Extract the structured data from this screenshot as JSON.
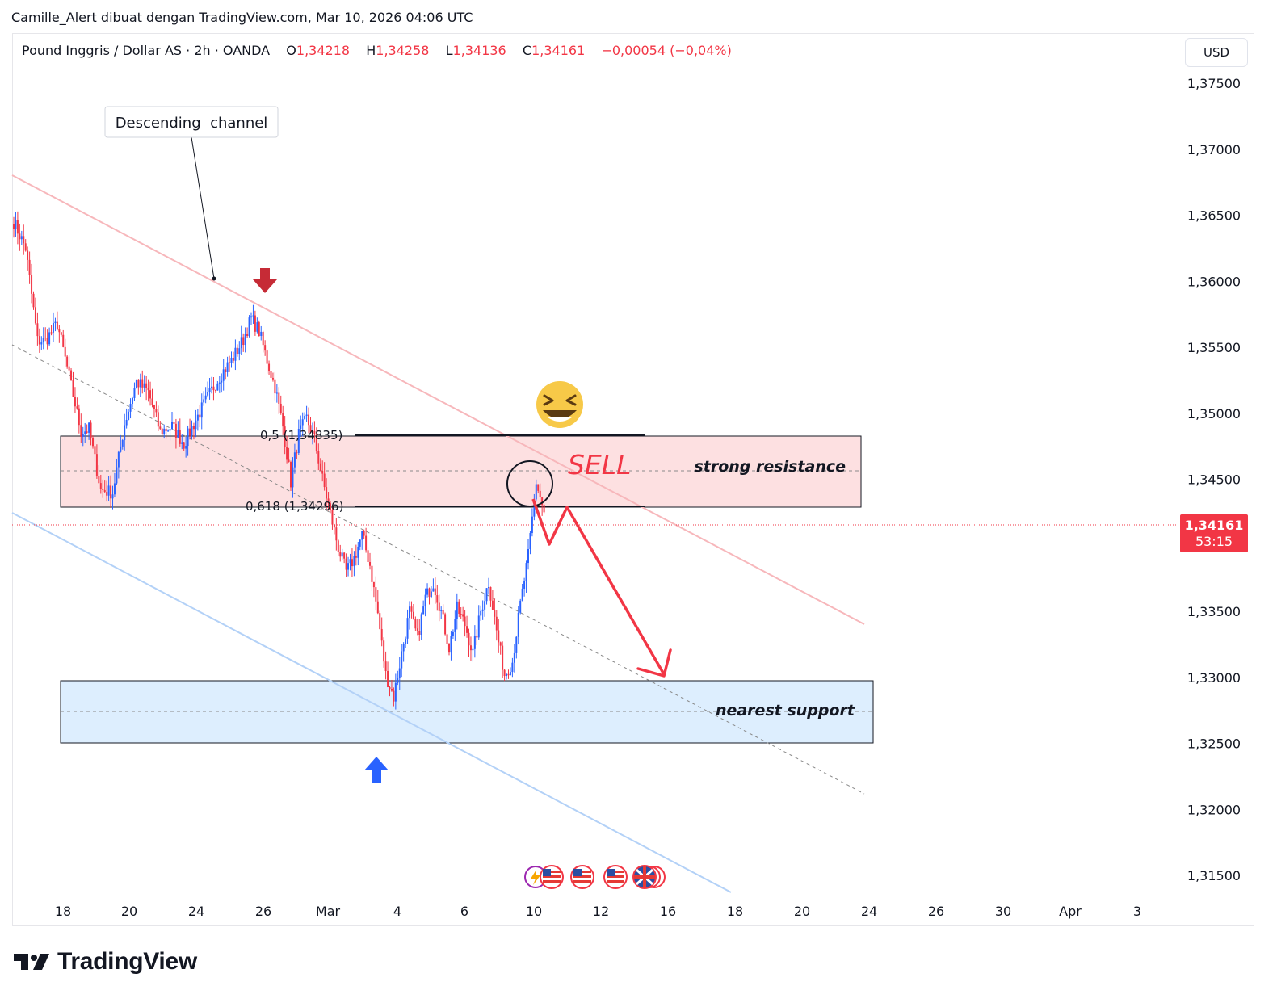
{
  "header": {
    "publish_line": "Camille_Alert dibuat dengan TradingView.com, Mar 10, 2026 04:06 UTC"
  },
  "legend": {
    "symbol": "Pound Inggris / Dollar AS · 2h · OANDA",
    "open_label": "O",
    "open_value": "1,34218",
    "high_label": "H",
    "high_value": "1,34258",
    "low_label": "L",
    "low_value": "1,34136",
    "close_label": "C",
    "close_value": "1,34161",
    "change": "−0,00054 (−0,04%)"
  },
  "currency_button": "USD",
  "price_tag": {
    "price": "1,34161",
    "countdown": "53:15"
  },
  "colors": {
    "up": "#2962ff",
    "down": "#f23645",
    "resistance_fill": "#fde0e1",
    "support_fill": "#ddeefe",
    "channel_upper": "#f7b7bb",
    "channel_lower": "#b3d1f7",
    "sell": "#f23645"
  },
  "chart_data": {
    "type": "candlestick",
    "symbol": "GBPUSD",
    "timeframe": "2h",
    "y_axis": {
      "min": 1.313,
      "max": 1.3775,
      "ticks": [
        "1,37500",
        "1,37000",
        "1,36500",
        "1,36000",
        "1,35500",
        "1,35000",
        "1,34500",
        "1,34000",
        "1,33500",
        "1,33000",
        "1,32500",
        "1,32000",
        "1,31500"
      ],
      "tick_values": [
        1.375,
        1.37,
        1.365,
        1.36,
        1.355,
        1.35,
        1.345,
        1.34,
        1.335,
        1.33,
        1.325,
        1.32,
        1.315
      ]
    },
    "x_axis": {
      "labels": [
        "18",
        "20",
        "24",
        "26",
        "Mar",
        "4",
        "6",
        "10",
        "12",
        "16",
        "18",
        "20",
        "24",
        "26",
        "30",
        "Apr",
        "3"
      ]
    },
    "waypoints": [
      [
        0,
        1.3645
      ],
      [
        6,
        1.3625
      ],
      [
        12,
        1.3555
      ],
      [
        16,
        1.3555
      ],
      [
        22,
        1.3568
      ],
      [
        28,
        1.3528
      ],
      [
        34,
        1.3486
      ],
      [
        38,
        1.3488
      ],
      [
        44,
        1.3442
      ],
      [
        50,
        1.344
      ],
      [
        56,
        1.3492
      ],
      [
        62,
        1.3524
      ],
      [
        68,
        1.3516
      ],
      [
        74,
        1.3486
      ],
      [
        80,
        1.349
      ],
      [
        86,
        1.3477
      ],
      [
        92,
        1.3495
      ],
      [
        98,
        1.3512
      ],
      [
        104,
        1.3528
      ],
      [
        110,
        1.354
      ],
      [
        116,
        1.3556
      ],
      [
        120,
        1.3572
      ],
      [
        124,
        1.3562
      ],
      [
        128,
        1.354
      ],
      [
        132,
        1.352
      ],
      [
        136,
        1.349
      ],
      [
        140,
        1.3448
      ],
      [
        144,
        1.3484
      ],
      [
        148,
        1.3496
      ],
      [
        152,
        1.348
      ],
      [
        156,
        1.345
      ],
      [
        160,
        1.3424
      ],
      [
        164,
        1.3398
      ],
      [
        168,
        1.338
      ],
      [
        172,
        1.339
      ],
      [
        176,
        1.3408
      ],
      [
        180,
        1.3385
      ],
      [
        184,
        1.3348
      ],
      [
        188,
        1.3302
      ],
      [
        192,
        1.3285
      ],
      [
        196,
        1.3318
      ],
      [
        200,
        1.335
      ],
      [
        204,
        1.333
      ],
      [
        208,
        1.336
      ],
      [
        212,
        1.3372
      ],
      [
        216,
        1.335
      ],
      [
        220,
        1.3322
      ],
      [
        224,
        1.3352
      ],
      [
        228,
        1.334
      ],
      [
        232,
        1.3318
      ],
      [
        236,
        1.335
      ],
      [
        240,
        1.3372
      ],
      [
        244,
        1.3335
      ],
      [
        248,
        1.3302
      ],
      [
        252,
        1.3312
      ],
      [
        256,
        1.3355
      ],
      [
        260,
        1.3392
      ],
      [
        264,
        1.3448
      ],
      [
        268,
        1.3425
      ]
    ],
    "annotations": {
      "channel_label": "Descending  channel",
      "fib_05": "0,5 (1,34835)",
      "fib_0618": "0,618 (1,34296)",
      "fib_05_value": 1.34835,
      "fib_0618_value": 1.34296,
      "resistance_zone": [
        1.34296,
        1.34835
      ],
      "resistance_label": "strong resistance",
      "support_zone": [
        1.3251,
        1.3298
      ],
      "support_label": "nearest support",
      "sell_label": "SELL"
    }
  },
  "footer": {
    "brand": "TradingView"
  }
}
